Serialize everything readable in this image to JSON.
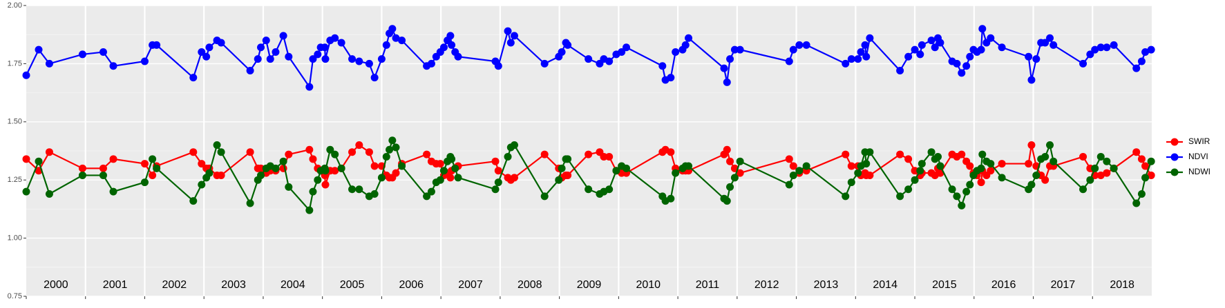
{
  "chart_data": {
    "type": "line",
    "x": [
      2000.0,
      2000.21,
      2000.39,
      2000.95,
      2001.3,
      2001.47,
      2002.0,
      2002.13,
      2002.2,
      2002.82,
      2002.96,
      2003.04,
      2003.09,
      2003.22,
      2003.29,
      2003.78,
      2003.91,
      2003.96,
      2004.05,
      2004.12,
      2004.21,
      2004.34,
      2004.43,
      2004.78,
      2004.84,
      2004.92,
      2004.97,
      2005.04,
      2005.05,
      2005.13,
      2005.21,
      2005.32,
      2005.5,
      2005.62,
      2005.79,
      2005.88,
      2006.0,
      2006.08,
      2006.13,
      2006.18,
      2006.24,
      2006.34,
      2006.76,
      2006.84,
      2006.92,
      2006.99,
      2007.05,
      2007.11,
      2007.16,
      2007.18,
      2007.24,
      2007.29,
      2007.92,
      2007.97,
      2008.13,
      2008.18,
      2008.24,
      2008.75,
      2008.99,
      2009.04,
      2009.11,
      2009.14,
      2009.49,
      2009.68,
      2009.75,
      2009.84,
      2009.96,
      2010.05,
      2010.13,
      2010.74,
      2010.79,
      2010.88,
      2010.96,
      2011.08,
      2011.13,
      2011.18,
      2011.78,
      2011.83,
      2011.88,
      2011.96,
      2012.05,
      2012.88,
      2012.95,
      2013.05,
      2013.17,
      2013.83,
      2013.93,
      2014.04,
      2014.09,
      2014.16,
      2014.18,
      2014.24,
      2014.75,
      2014.89,
      2015.0,
      2015.09,
      2015.12,
      2015.28,
      2015.34,
      2015.39,
      2015.43,
      2015.63,
      2015.71,
      2015.79,
      2015.87,
      2015.93,
      2015.99,
      2016.05,
      2016.12,
      2016.14,
      2016.21,
      2016.28,
      2016.47,
      2016.92,
      2016.97,
      2017.05,
      2017.13,
      2017.2,
      2017.28,
      2017.34,
      2017.84,
      2017.96,
      2018.04,
      2018.14,
      2018.24,
      2018.36,
      2018.74,
      2018.83,
      2018.89,
      2018.99
    ],
    "series": [
      {
        "name": "SWIR",
        "color": "#ff0000",
        "values": [
          1.34,
          1.29,
          1.37,
          1.3,
          1.3,
          1.34,
          1.32,
          1.27,
          1.31,
          1.37,
          1.32,
          1.3,
          1.3,
          1.27,
          1.27,
          1.37,
          1.3,
          1.3,
          1.28,
          1.29,
          1.29,
          1.3,
          1.36,
          1.38,
          1.34,
          1.3,
          1.29,
          1.27,
          1.23,
          1.29,
          1.29,
          1.3,
          1.37,
          1.4,
          1.37,
          1.31,
          1.31,
          1.27,
          1.26,
          1.26,
          1.28,
          1.32,
          1.36,
          1.33,
          1.32,
          1.32,
          1.27,
          1.28,
          1.26,
          1.29,
          1.3,
          1.31,
          1.33,
          1.29,
          1.26,
          1.25,
          1.26,
          1.36,
          1.3,
          1.26,
          1.27,
          1.27,
          1.36,
          1.37,
          1.35,
          1.35,
          1.29,
          1.28,
          1.28,
          1.37,
          1.38,
          1.37,
          1.3,
          1.29,
          1.29,
          1.29,
          1.36,
          1.38,
          1.33,
          1.3,
          1.28,
          1.34,
          1.31,
          1.28,
          1.29,
          1.36,
          1.31,
          1.31,
          1.27,
          1.28,
          1.27,
          1.27,
          1.36,
          1.34,
          1.29,
          1.27,
          1.28,
          1.28,
          1.27,
          1.3,
          1.28,
          1.36,
          1.35,
          1.36,
          1.33,
          1.31,
          1.28,
          1.27,
          1.24,
          1.29,
          1.27,
          1.29,
          1.32,
          1.32,
          1.4,
          1.31,
          1.27,
          1.25,
          1.31,
          1.31,
          1.35,
          1.3,
          1.27,
          1.27,
          1.28,
          1.3,
          1.37,
          1.34,
          1.31,
          1.27
        ]
      },
      {
        "name": "NDVI",
        "color": "#0000ff",
        "values": [
          1.7,
          1.81,
          1.75,
          1.79,
          1.8,
          1.74,
          1.76,
          1.83,
          1.83,
          1.69,
          1.8,
          1.78,
          1.82,
          1.85,
          1.84,
          1.72,
          1.77,
          1.82,
          1.85,
          1.77,
          1.8,
          1.87,
          1.78,
          1.65,
          1.77,
          1.79,
          1.82,
          1.82,
          1.77,
          1.85,
          1.86,
          1.84,
          1.77,
          1.76,
          1.75,
          1.69,
          1.77,
          1.83,
          1.88,
          1.9,
          1.86,
          1.85,
          1.74,
          1.75,
          1.78,
          1.8,
          1.82,
          1.85,
          1.87,
          1.83,
          1.8,
          1.78,
          1.76,
          1.74,
          1.89,
          1.84,
          1.87,
          1.75,
          1.78,
          1.8,
          1.84,
          1.83,
          1.77,
          1.75,
          1.77,
          1.76,
          1.79,
          1.8,
          1.82,
          1.74,
          1.68,
          1.69,
          1.8,
          1.81,
          1.83,
          1.86,
          1.73,
          1.67,
          1.77,
          1.81,
          1.81,
          1.76,
          1.81,
          1.83,
          1.83,
          1.75,
          1.77,
          1.77,
          1.8,
          1.83,
          1.78,
          1.86,
          1.72,
          1.78,
          1.81,
          1.79,
          1.83,
          1.85,
          1.82,
          1.86,
          1.84,
          1.76,
          1.75,
          1.71,
          1.74,
          1.78,
          1.81,
          1.8,
          1.81,
          1.9,
          1.84,
          1.86,
          1.82,
          1.78,
          1.68,
          1.77,
          1.84,
          1.84,
          1.86,
          1.83,
          1.75,
          1.79,
          1.81,
          1.82,
          1.82,
          1.83,
          1.73,
          1.76,
          1.8,
          1.81
        ]
      },
      {
        "name": "NDWI",
        "color": "#006400",
        "values": [
          1.2,
          1.33,
          1.19,
          1.27,
          1.27,
          1.2,
          1.24,
          1.34,
          1.3,
          1.16,
          1.23,
          1.26,
          1.28,
          1.4,
          1.37,
          1.15,
          1.25,
          1.27,
          1.3,
          1.31,
          1.3,
          1.33,
          1.22,
          1.12,
          1.2,
          1.25,
          1.29,
          1.3,
          1.29,
          1.38,
          1.36,
          1.3,
          1.21,
          1.21,
          1.18,
          1.19,
          1.26,
          1.35,
          1.38,
          1.42,
          1.39,
          1.31,
          1.18,
          1.2,
          1.24,
          1.25,
          1.29,
          1.33,
          1.35,
          1.34,
          1.3,
          1.26,
          1.21,
          1.24,
          1.35,
          1.39,
          1.4,
          1.18,
          1.25,
          1.3,
          1.34,
          1.34,
          1.21,
          1.19,
          1.2,
          1.21,
          1.29,
          1.31,
          1.3,
          1.18,
          1.16,
          1.17,
          1.28,
          1.3,
          1.31,
          1.31,
          1.17,
          1.16,
          1.22,
          1.26,
          1.33,
          1.23,
          1.27,
          1.29,
          1.31,
          1.18,
          1.24,
          1.28,
          1.31,
          1.37,
          1.32,
          1.37,
          1.18,
          1.21,
          1.25,
          1.29,
          1.32,
          1.37,
          1.34,
          1.35,
          1.31,
          1.21,
          1.18,
          1.14,
          1.2,
          1.23,
          1.27,
          1.29,
          1.3,
          1.36,
          1.33,
          1.32,
          1.26,
          1.21,
          1.23,
          1.27,
          1.34,
          1.35,
          1.4,
          1.33,
          1.21,
          1.25,
          1.3,
          1.35,
          1.33,
          1.3,
          1.15,
          1.19,
          1.26,
          1.33
        ]
      }
    ],
    "xlim": [
      2000,
      2019
    ],
    "xticks": [
      {
        "value": 2000.5,
        "label": "2000"
      },
      {
        "value": 2001.5,
        "label": "2001"
      },
      {
        "value": 2002.5,
        "label": "2002"
      },
      {
        "value": 2003.5,
        "label": "2003"
      },
      {
        "value": 2004.5,
        "label": "2004"
      },
      {
        "value": 2005.5,
        "label": "2005"
      },
      {
        "value": 2006.5,
        "label": "2006"
      },
      {
        "value": 2007.5,
        "label": "2007"
      },
      {
        "value": 2008.5,
        "label": "2008"
      },
      {
        "value": 2009.5,
        "label": "2009"
      },
      {
        "value": 2010.5,
        "label": "2010"
      },
      {
        "value": 2011.5,
        "label": "2011"
      },
      {
        "value": 2012.5,
        "label": "2012"
      },
      {
        "value": 2013.5,
        "label": "2013"
      },
      {
        "value": 2014.5,
        "label": "2014"
      },
      {
        "value": 2015.5,
        "label": "2015"
      },
      {
        "value": 2016.5,
        "label": "2016"
      },
      {
        "value": 2017.5,
        "label": "2017"
      },
      {
        "value": 2018.5,
        "label": "2018"
      }
    ],
    "ylim": [
      0.75,
      2.0
    ],
    "yticks": [
      0.75,
      {
        "value": 1.0,
        "label": "1.00"
      },
      1.25,
      {
        "value": 1.5,
        "label": "1.50"
      },
      1.75,
      {
        "value": 2.0,
        "label": "2.00"
      }
    ],
    "grid": true,
    "legend": "right"
  }
}
